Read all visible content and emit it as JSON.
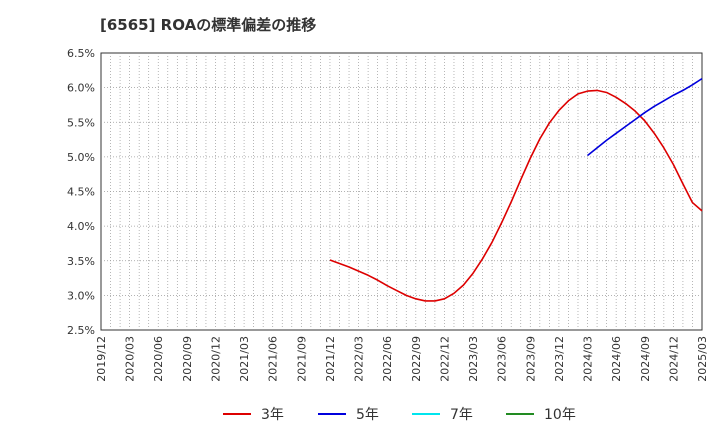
{
  "title": "[6565]  ROAの標準偏差の推移",
  "chart_data": {
    "type": "line",
    "title": "[6565]  ROAの標準偏差の推移",
    "xlabel": "",
    "ylabel": "",
    "ylim": [
      2.5,
      6.5
    ],
    "yticks": [
      "2.5%",
      "3.0%",
      "3.5%",
      "4.0%",
      "4.5%",
      "5.0%",
      "5.5%",
      "6.0%",
      "6.5%"
    ],
    "xlim": [
      "2019/12",
      "2025/03"
    ],
    "xticks": [
      "2019/12",
      "2020/03",
      "2020/06",
      "2020/09",
      "2020/12",
      "2021/03",
      "2021/06",
      "2021/09",
      "2021/12",
      "2022/03",
      "2022/06",
      "2022/09",
      "2022/12",
      "2023/03",
      "2023/06",
      "2023/09",
      "2023/12",
      "2024/03",
      "2024/06",
      "2024/09",
      "2024/12",
      "2025/03"
    ],
    "grid": true,
    "legend_position": "bottom",
    "series": [
      {
        "name": "3年",
        "color": "#dd0000",
        "points": [
          [
            "2021/12",
            3.51
          ],
          [
            "2022/01",
            3.46
          ],
          [
            "2022/02",
            3.41
          ],
          [
            "2022/03",
            3.35
          ],
          [
            "2022/04",
            3.29
          ],
          [
            "2022/05",
            3.22
          ],
          [
            "2022/06",
            3.14
          ],
          [
            "2022/07",
            3.07
          ],
          [
            "2022/08",
            3.0
          ],
          [
            "2022/09",
            2.95
          ],
          [
            "2022/10",
            2.92
          ],
          [
            "2022/11",
            2.92
          ],
          [
            "2022/12",
            2.95
          ],
          [
            "2023/01",
            3.03
          ],
          [
            "2023/02",
            3.15
          ],
          [
            "2023/03",
            3.32
          ],
          [
            "2023/04",
            3.53
          ],
          [
            "2023/05",
            3.77
          ],
          [
            "2023/06",
            4.05
          ],
          [
            "2023/07",
            4.35
          ],
          [
            "2023/08",
            4.67
          ],
          [
            "2023/09",
            4.98
          ],
          [
            "2023/10",
            5.26
          ],
          [
            "2023/11",
            5.49
          ],
          [
            "2023/12",
            5.67
          ],
          [
            "2024/01",
            5.81
          ],
          [
            "2024/02",
            5.91
          ],
          [
            "2024/03",
            5.95
          ],
          [
            "2024/04",
            5.96
          ],
          [
            "2024/05",
            5.93
          ],
          [
            "2024/06",
            5.86
          ],
          [
            "2024/07",
            5.77
          ],
          [
            "2024/08",
            5.66
          ],
          [
            "2024/09",
            5.52
          ],
          [
            "2024/10",
            5.34
          ],
          [
            "2024/11",
            5.13
          ],
          [
            "2024/12",
            4.89
          ],
          [
            "2025/01",
            4.61
          ],
          [
            "2025/02",
            4.34
          ],
          [
            "2025/03",
            4.22
          ]
        ]
      },
      {
        "name": "5年",
        "color": "#0000dd",
        "points": [
          [
            "2024/03",
            5.02
          ],
          [
            "2024/04",
            5.13
          ],
          [
            "2024/05",
            5.24
          ],
          [
            "2024/06",
            5.34
          ],
          [
            "2024/07",
            5.44
          ],
          [
            "2024/08",
            5.54
          ],
          [
            "2024/09",
            5.64
          ],
          [
            "2024/10",
            5.73
          ],
          [
            "2024/11",
            5.81
          ],
          [
            "2024/12",
            5.89
          ],
          [
            "2025/01",
            5.96
          ],
          [
            "2025/02",
            6.04
          ],
          [
            "2025/03",
            6.13
          ]
        ]
      },
      {
        "name": "7年",
        "color": "#00e5ee",
        "points": []
      },
      {
        "name": "10年",
        "color": "#228b22",
        "points": []
      }
    ]
  }
}
